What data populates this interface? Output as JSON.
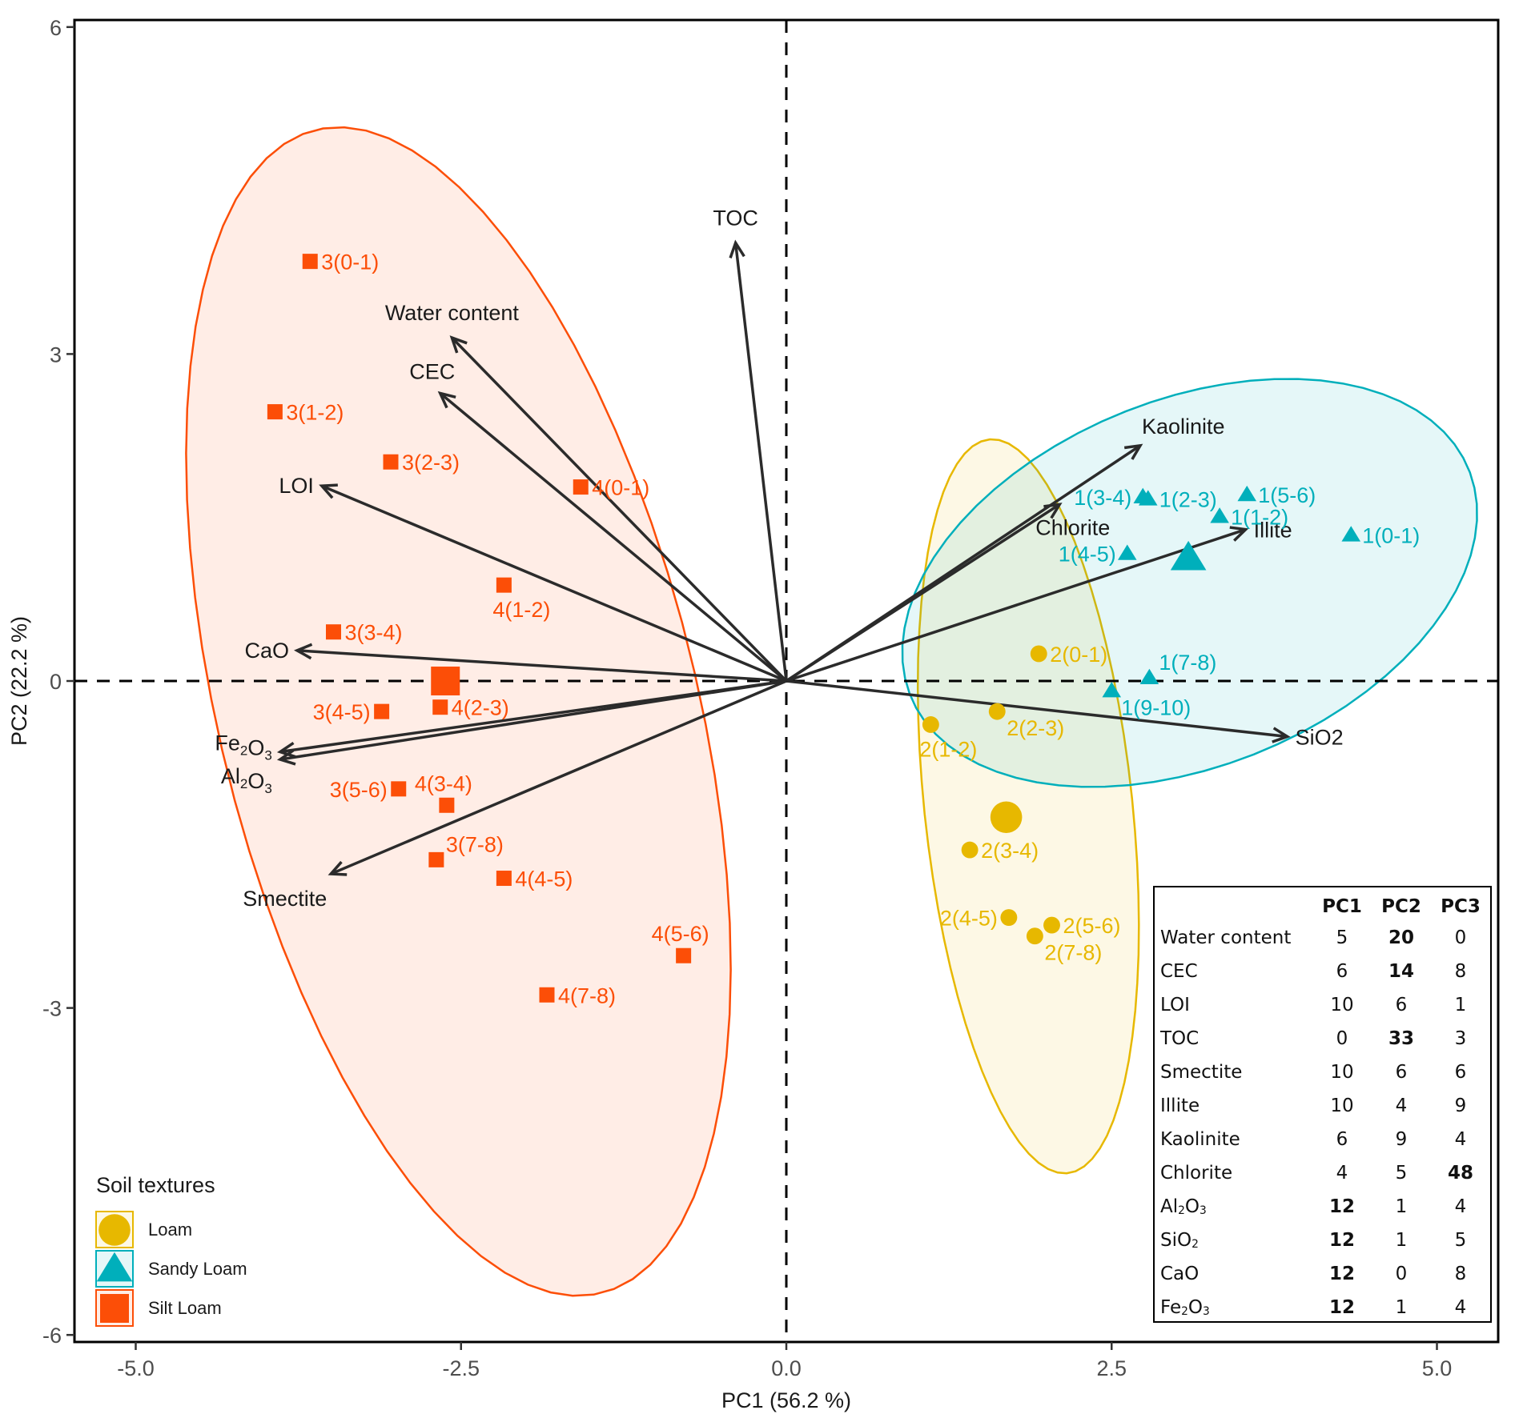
{
  "chart_data": {
    "type": "scatter",
    "subtype": "pca-biplot",
    "xlabel": "PC1 (56.2 %)",
    "ylabel": "PC2 (22.2 %)",
    "xlim": [
      -5.55,
      5.35
    ],
    "ylim": [
      -6.1,
      6.1
    ],
    "xticks": [
      -5.0,
      -2.5,
      0.0,
      2.5,
      5.0
    ],
    "xtick_labels": [
      "-5.0",
      "-2.5",
      "0.0",
      "2.5",
      "5.0"
    ],
    "yticks": [
      -6,
      -3,
      0,
      3,
      6
    ],
    "ytick_labels": [
      "-6",
      "-3",
      "0",
      "3",
      "6"
    ],
    "reference_lines": {
      "x": 0,
      "y": 0,
      "style": "dashed"
    },
    "grid": false,
    "groups": [
      {
        "name": "Loam",
        "color": "#E7B800",
        "fill": "#FCF6E6",
        "marker": "circle",
        "centroid": [
          1.69,
          -1.25
        ],
        "ellipse": {
          "center": [
            1.86,
            -1.15
          ],
          "semi_major": 3.38,
          "semi_minor": 0.8,
          "angle_deg": 95
        },
        "points": [
          {
            "label": "2(0-1)",
            "x": 1.94,
            "y": 0.25,
            "label_pos": "right"
          },
          {
            "label": "2(1-2)",
            "x": 1.11,
            "y": -0.4,
            "label_pos": "below"
          },
          {
            "label": "2(2-3)",
            "x": 1.62,
            "y": -0.28,
            "label_pos": "below-right"
          },
          {
            "label": "2(3-4)",
            "x": 1.41,
            "y": -1.55,
            "label_pos": "right"
          },
          {
            "label": "2(4-5)",
            "x": 1.71,
            "y": -2.17,
            "label_pos": "left"
          },
          {
            "label": "2(5-6)",
            "x": 2.04,
            "y": -2.24,
            "label_pos": "right"
          },
          {
            "label": "2(7-8)",
            "x": 1.91,
            "y": -2.34,
            "label_pos": "below-right"
          }
        ]
      },
      {
        "name": "Sandy Loam",
        "color": "#00AFBB",
        "fill": "#E3F6F7",
        "marker": "triangle",
        "centroid": [
          3.09,
          1.13
        ],
        "ellipse": {
          "center": [
            3.1,
            0.9
          ],
          "semi_major": 2.4,
          "semi_minor": 1.62,
          "angle_deg": 32
        },
        "points": [
          {
            "label": "1(0-1)",
            "x": 4.34,
            "y": 1.34,
            "label_pos": "right"
          },
          {
            "label": "1(1-2)",
            "x": 3.33,
            "y": 1.51,
            "label_pos": "right"
          },
          {
            "label": "1(2-3)",
            "x": 2.78,
            "y": 1.67,
            "label_pos": "right"
          },
          {
            "label": "1(3-4)",
            "x": 2.74,
            "y": 1.69,
            "label_pos": "left"
          },
          {
            "label": "1(4-5)",
            "x": 2.62,
            "y": 1.17,
            "label_pos": "left"
          },
          {
            "label": "1(5-6)",
            "x": 3.54,
            "y": 1.71,
            "label_pos": "right"
          },
          {
            "label": "1(7-8)",
            "x": 2.79,
            "y": 0.03,
            "label_pos": "above-right"
          },
          {
            "label": "1(9-10)",
            "x": 2.5,
            "y": -0.09,
            "label_pos": "below-right"
          }
        ]
      },
      {
        "name": "Silt Loam",
        "color": "#FC4E07",
        "fill": "#FFEDE6",
        "marker": "square",
        "centroid": [
          -2.62,
          0.0
        ],
        "ellipse": {
          "center": [
            -2.52,
            -0.28
          ],
          "semi_major": 5.45,
          "semi_minor": 1.85,
          "angle_deg": 101
        },
        "points": [
          {
            "label": "3(0-1)",
            "x": -3.66,
            "y": 3.85,
            "label_pos": "right"
          },
          {
            "label": "3(1-2)",
            "x": -3.93,
            "y": 2.47,
            "label_pos": "right"
          },
          {
            "label": "3(2-3)",
            "x": -3.04,
            "y": 2.01,
            "label_pos": "right"
          },
          {
            "label": "3(3-4)",
            "x": -3.48,
            "y": 0.45,
            "label_pos": "right"
          },
          {
            "label": "3(4-5)",
            "x": -3.11,
            "y": -0.28,
            "label_pos": "left"
          },
          {
            "label": "3(5-6)",
            "x": -2.98,
            "y": -0.99,
            "label_pos": "left"
          },
          {
            "label": "3(7-8)",
            "x": -2.69,
            "y": -1.64,
            "label_pos": "above-right"
          },
          {
            "label": "4(0-1)",
            "x": -1.58,
            "y": 1.78,
            "label_pos": "right"
          },
          {
            "label": "4(1-2)",
            "x": -2.17,
            "y": 0.88,
            "label_pos": "below"
          },
          {
            "label": "4(2-3)",
            "x": -2.66,
            "y": -0.24,
            "label_pos": "right"
          },
          {
            "label": "4(3-4)",
            "x": -2.61,
            "y": -1.14,
            "label_pos": "above"
          },
          {
            "label": "4(4-5)",
            "x": -2.17,
            "y": -1.81,
            "label_pos": "right"
          },
          {
            "label": "4(5-6)",
            "x": -0.79,
            "y": -2.52,
            "label_pos": "above"
          },
          {
            "label": "4(7-8)",
            "x": -1.84,
            "y": -2.88,
            "label_pos": "right"
          }
        ]
      }
    ],
    "variables": [
      {
        "name": "TOC",
        "x": -0.39,
        "y": 4.02,
        "label_pos": "above"
      },
      {
        "name": "Water content",
        "x": -2.57,
        "y": 3.15,
        "label_pos": "above"
      },
      {
        "name": "CEC",
        "x": -2.66,
        "y": 2.64,
        "label_pos": "above-left"
      },
      {
        "name": "LOI",
        "x": -3.57,
        "y": 1.79,
        "label_pos": "left"
      },
      {
        "name": "CaO",
        "x": -3.76,
        "y": 0.28,
        "label_pos": "left"
      },
      {
        "name": "Fe2O3",
        "x": -3.89,
        "y": -0.65,
        "label_pos": "left"
      },
      {
        "name": "Al2O3",
        "x": -3.89,
        "y": -0.72,
        "label_pos": "left-below"
      },
      {
        "name": "Smectite",
        "x": -3.5,
        "y": -1.77,
        "label_pos": "below-left"
      },
      {
        "name": "Kaolinite",
        "x": 2.72,
        "y": 2.16,
        "label_pos": "above-right"
      },
      {
        "name": "Chlorite",
        "x": 2.1,
        "y": 1.62,
        "label_pos": "below"
      },
      {
        "name": "Illite",
        "x": 3.53,
        "y": 1.39,
        "label_pos": "right"
      },
      {
        "name": "SiO2",
        "x": 3.85,
        "y": -0.51,
        "label_pos": "right"
      }
    ],
    "legend": {
      "title": "Soil textures",
      "placement": "bottom-left",
      "entries": [
        "Loam",
        "Sandy Loam",
        "Silt Loam"
      ]
    },
    "contribution_table": {
      "placement": "bottom-right",
      "columns": [
        "",
        "PC1",
        "PC2",
        "PC3"
      ],
      "rows": [
        {
          "name": "Water content",
          "values": [
            5,
            20,
            0
          ],
          "bold": [
            false,
            true,
            false
          ]
        },
        {
          "name": "CEC",
          "values": [
            6,
            14,
            8
          ],
          "bold": [
            false,
            true,
            false
          ]
        },
        {
          "name": "LOI",
          "values": [
            10,
            6,
            1
          ],
          "bold": [
            false,
            false,
            false
          ]
        },
        {
          "name": "TOC",
          "values": [
            0,
            33,
            3
          ],
          "bold": [
            false,
            true,
            false
          ]
        },
        {
          "name": "Smectite",
          "values": [
            10,
            6,
            6
          ],
          "bold": [
            false,
            false,
            false
          ]
        },
        {
          "name": "Illite",
          "values": [
            10,
            4,
            9
          ],
          "bold": [
            false,
            false,
            false
          ]
        },
        {
          "name": "Kaolinite",
          "values": [
            6,
            9,
            4
          ],
          "bold": [
            false,
            false,
            false
          ]
        },
        {
          "name": "Chlorite",
          "values": [
            4,
            5,
            48
          ],
          "bold": [
            false,
            false,
            true
          ]
        },
        {
          "name": "Al2O3",
          "values": [
            12,
            1,
            4
          ],
          "bold": [
            true,
            false,
            false
          ]
        },
        {
          "name": "SiO2",
          "values": [
            12,
            1,
            5
          ],
          "bold": [
            true,
            false,
            false
          ]
        },
        {
          "name": "CaO",
          "values": [
            12,
            0,
            8
          ],
          "bold": [
            true,
            false,
            false
          ]
        },
        {
          "name": "Fe2O3",
          "values": [
            12,
            1,
            4
          ],
          "bold": [
            true,
            false,
            false
          ]
        }
      ]
    }
  },
  "colors": {
    "arrow": "#2b2b2b",
    "axis": "#000000",
    "tick_text": "#4d4d4d"
  }
}
